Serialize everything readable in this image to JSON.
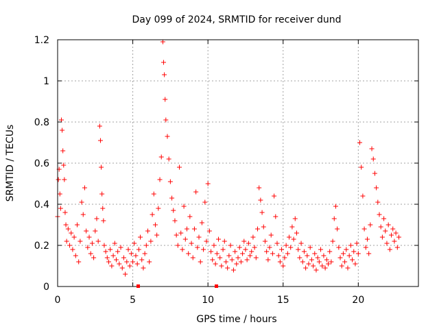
{
  "chart_data": {
    "type": "scatter",
    "title": "Day 099 of 2024, SRMTID for receiver dund",
    "xlabel": "GPS time / hours",
    "ylabel": "SRMTID / TECUs",
    "xlim": [
      0,
      24
    ],
    "ylim": [
      0,
      1.2
    ],
    "xticks": [
      0,
      5,
      10,
      15,
      20
    ],
    "xtick_labels": [
      "0",
      "5",
      "10",
      "15",
      "20"
    ],
    "yticks": [
      0,
      0.2,
      0.4,
      0.6,
      0.8,
      1,
      1.2
    ],
    "ytick_labels": [
      "0",
      "0.2",
      "0.4",
      "0.6",
      "0.8",
      "1",
      "1.2"
    ],
    "grid": true,
    "marker": "+",
    "color": "#ff0000",
    "series": [
      {
        "name": "SRMTID",
        "x": [
          0.0,
          0.05,
          0.1,
          0.15,
          0.2,
          0.25,
          0.3,
          0.35,
          0.4,
          0.45,
          0.5,
          0.55,
          0.6,
          0.7,
          0.8,
          0.9,
          1.0,
          1.1,
          1.2,
          1.3,
          1.4,
          1.5,
          1.6,
          1.7,
          1.8,
          1.9,
          2.0,
          2.1,
          2.2,
          2.3,
          2.4,
          2.5,
          2.6,
          2.7,
          2.8,
          2.85,
          2.9,
          2.95,
          3.0,
          3.05,
          3.1,
          3.2,
          3.3,
          3.4,
          3.5,
          3.6,
          3.7,
          3.8,
          3.9,
          4.0,
          4.1,
          4.2,
          4.3,
          4.4,
          4.5,
          4.6,
          4.7,
          4.8,
          4.9,
          5.0,
          5.1,
          5.2,
          5.3,
          5.4,
          5.5,
          5.6,
          5.7,
          5.8,
          5.9,
          6.0,
          6.1,
          6.2,
          6.3,
          6.4,
          6.5,
          6.6,
          6.7,
          6.8,
          6.9,
          7.0,
          7.05,
          7.1,
          7.15,
          7.2,
          7.3,
          7.4,
          7.5,
          7.6,
          7.7,
          7.8,
          7.9,
          8.0,
          8.1,
          8.2,
          8.3,
          8.4,
          8.5,
          8.6,
          8.7,
          8.8,
          8.9,
          9.0,
          9.1,
          9.2,
          9.3,
          9.4,
          9.5,
          9.6,
          9.7,
          9.8,
          9.9,
          10.0,
          10.1,
          10.2,
          10.3,
          10.4,
          10.5,
          10.6,
          10.7,
          10.8,
          10.9,
          11.0,
          11.1,
          11.2,
          11.3,
          11.4,
          11.5,
          11.6,
          11.7,
          11.8,
          11.9,
          12.0,
          12.1,
          12.2,
          12.3,
          12.4,
          12.5,
          12.6,
          12.7,
          12.8,
          12.9,
          13.0,
          13.1,
          13.2,
          13.3,
          13.4,
          13.5,
          13.6,
          13.7,
          13.8,
          13.9,
          14.0,
          14.1,
          14.2,
          14.3,
          14.4,
          14.5,
          14.6,
          14.7,
          14.8,
          14.9,
          15.0,
          15.1,
          15.2,
          15.3,
          15.4,
          15.5,
          15.6,
          15.7,
          15.8,
          15.9,
          16.0,
          16.1,
          16.2,
          16.3,
          16.4,
          16.5,
          16.6,
          16.7,
          16.8,
          16.9,
          17.0,
          17.1,
          17.2,
          17.3,
          17.4,
          17.5,
          17.6,
          17.7,
          17.8,
          17.9,
          18.0,
          18.1,
          18.2,
          18.3,
          18.4,
          18.5,
          18.6,
          18.7,
          18.8,
          18.9,
          19.0,
          19.1,
          19.2,
          19.3,
          19.4,
          19.5,
          19.6,
          19.7,
          19.8,
          19.9,
          20.0,
          20.1,
          20.2,
          20.3,
          20.4,
          20.5,
          20.6,
          20.7,
          20.8,
          20.9,
          21.0,
          21.1,
          21.2,
          21.3,
          21.4,
          21.5,
          21.6,
          21.7,
          21.8,
          21.9,
          22.0,
          22.1,
          22.2,
          22.3,
          22.4,
          22.5,
          22.6,
          22.7
        ],
        "y": [
          0.34,
          0.52,
          0.57,
          0.45,
          0.38,
          0.81,
          0.76,
          0.66,
          0.59,
          0.52,
          0.36,
          0.3,
          0.22,
          0.28,
          0.2,
          0.26,
          0.18,
          0.24,
          0.15,
          0.3,
          0.12,
          0.22,
          0.41,
          0.35,
          0.48,
          0.27,
          0.19,
          0.24,
          0.16,
          0.21,
          0.14,
          0.27,
          0.33,
          0.22,
          0.78,
          0.71,
          0.58,
          0.45,
          0.38,
          0.32,
          0.2,
          0.17,
          0.14,
          0.12,
          0.18,
          0.1,
          0.15,
          0.21,
          0.13,
          0.17,
          0.11,
          0.19,
          0.09,
          0.14,
          0.06,
          0.12,
          0.18,
          0.1,
          0.16,
          0.12,
          0.21,
          0.15,
          0.11,
          0.18,
          0.24,
          0.13,
          0.09,
          0.16,
          0.2,
          0.27,
          0.12,
          0.22,
          0.35,
          0.45,
          0.3,
          0.25,
          0.38,
          0.52,
          0.63,
          1.19,
          1.09,
          1.03,
          0.91,
          0.81,
          0.73,
          0.62,
          0.51,
          0.43,
          0.37,
          0.32,
          0.25,
          0.2,
          0.58,
          0.26,
          0.18,
          0.39,
          0.23,
          0.28,
          0.16,
          0.34,
          0.21,
          0.14,
          0.28,
          0.46,
          0.19,
          0.24,
          0.12,
          0.31,
          0.18,
          0.41,
          0.22,
          0.5,
          0.27,
          0.17,
          0.13,
          0.2,
          0.11,
          0.16,
          0.23,
          0.14,
          0.1,
          0.18,
          0.22,
          0.12,
          0.09,
          0.15,
          0.2,
          0.13,
          0.08,
          0.17,
          0.11,
          0.14,
          0.19,
          0.12,
          0.16,
          0.22,
          0.18,
          0.13,
          0.21,
          0.15,
          0.17,
          0.24,
          0.19,
          0.14,
          0.28,
          0.48,
          0.42,
          0.36,
          0.29,
          0.22,
          0.17,
          0.13,
          0.19,
          0.25,
          0.16,
          0.44,
          0.34,
          0.21,
          0.15,
          0.12,
          0.18,
          0.1,
          0.14,
          0.2,
          0.16,
          0.24,
          0.19,
          0.29,
          0.23,
          0.33,
          0.26,
          0.18,
          0.14,
          0.21,
          0.12,
          0.17,
          0.09,
          0.15,
          0.11,
          0.19,
          0.13,
          0.1,
          0.16,
          0.08,
          0.14,
          0.12,
          0.18,
          0.1,
          0.15,
          0.09,
          0.13,
          0.11,
          0.17,
          0.12,
          0.22,
          0.33,
          0.39,
          0.28,
          0.19,
          0.14,
          0.1,
          0.16,
          0.12,
          0.18,
          0.09,
          0.15,
          0.2,
          0.13,
          0.17,
          0.11,
          0.21,
          0.16,
          0.7,
          0.58,
          0.44,
          0.28,
          0.19,
          0.23,
          0.16,
          0.3,
          0.67,
          0.62,
          0.55,
          0.48,
          0.41,
          0.35,
          0.29,
          0.24,
          0.33,
          0.27,
          0.21,
          0.3,
          0.18,
          0.25,
          0.28,
          0.22,
          0.26,
          0.19,
          0.24
        ]
      }
    ]
  }
}
